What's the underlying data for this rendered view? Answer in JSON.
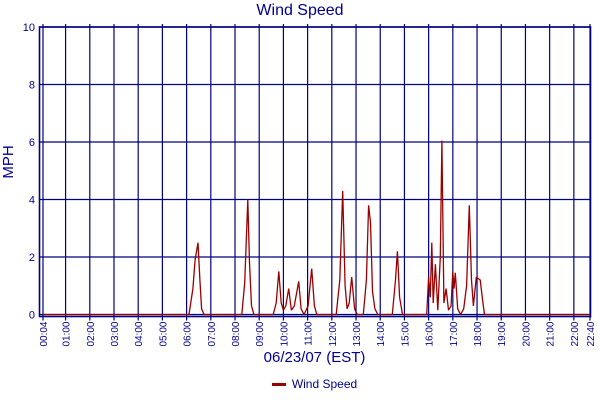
{
  "chart_data": {
    "type": "line",
    "title": "Wind Speed",
    "xlabel": "06/23/07 (EST)",
    "ylabel": "MPH",
    "ylim": [
      0,
      10
    ],
    "xlim": [
      0.067,
      22.667
    ],
    "grid": true,
    "y_ticks": [
      0,
      2,
      4,
      6,
      8,
      10
    ],
    "x_ticks": [
      {
        "t": 0.067,
        "label": "00:04"
      },
      {
        "t": 1,
        "label": "01:00"
      },
      {
        "t": 2,
        "label": "02:00"
      },
      {
        "t": 3,
        "label": "03:00"
      },
      {
        "t": 4,
        "label": "04:00"
      },
      {
        "t": 5,
        "label": "05:00"
      },
      {
        "t": 6,
        "label": "06:00"
      },
      {
        "t": 7,
        "label": "07:00"
      },
      {
        "t": 8,
        "label": "08:00"
      },
      {
        "t": 9,
        "label": "09:00"
      },
      {
        "t": 10,
        "label": "10:00"
      },
      {
        "t": 11,
        "label": "11:00"
      },
      {
        "t": 12,
        "label": "12:00"
      },
      {
        "t": 13,
        "label": "13:00"
      },
      {
        "t": 14,
        "label": "14:00"
      },
      {
        "t": 15,
        "label": "15:00"
      },
      {
        "t": 16,
        "label": "16:00"
      },
      {
        "t": 17,
        "label": "17:00"
      },
      {
        "t": 18,
        "label": "18:00"
      },
      {
        "t": 19,
        "label": "19:00"
      },
      {
        "t": 20,
        "label": "20:00"
      },
      {
        "t": 21,
        "label": "21:00"
      },
      {
        "t": 22,
        "label": "22:00"
      },
      {
        "t": 22.667,
        "label": "22:40"
      }
    ],
    "legend": {
      "position": "bottom",
      "entries": [
        {
          "label": "Wind Speed",
          "color": "#990000"
        }
      ]
    },
    "colors": {
      "axis": "#000080",
      "grid": "#000080",
      "text": "#00008B",
      "line": "#990000",
      "background": "#ffffff"
    },
    "series": [
      {
        "name": "Wind Speed",
        "color": "#990000",
        "points": [
          [
            0.07,
            0
          ],
          [
            6.1,
            0
          ],
          [
            6.26,
            0.9
          ],
          [
            6.35,
            1.9
          ],
          [
            6.47,
            2.5
          ],
          [
            6.55,
            1.2
          ],
          [
            6.62,
            0.2
          ],
          [
            6.72,
            0
          ],
          [
            8.28,
            0
          ],
          [
            8.4,
            1.1
          ],
          [
            8.53,
            4.0
          ],
          [
            8.6,
            1.8
          ],
          [
            8.68,
            0.3
          ],
          [
            8.78,
            0
          ],
          [
            9.58,
            0
          ],
          [
            9.7,
            0.4
          ],
          [
            9.81,
            1.5
          ],
          [
            9.91,
            0.4
          ],
          [
            10.0,
            0.15
          ],
          [
            10.1,
            0.3
          ],
          [
            10.22,
            0.9
          ],
          [
            10.33,
            0.15
          ],
          [
            10.45,
            0.3
          ],
          [
            10.63,
            1.15
          ],
          [
            10.73,
            0.2
          ],
          [
            10.85,
            0
          ],
          [
            11.02,
            0.3
          ],
          [
            11.17,
            1.6
          ],
          [
            11.28,
            0.3
          ],
          [
            11.38,
            0
          ],
          [
            12.18,
            0
          ],
          [
            12.33,
            1.2
          ],
          [
            12.45,
            4.3
          ],
          [
            12.55,
            1.0
          ],
          [
            12.63,
            0.2
          ],
          [
            12.72,
            0.4
          ],
          [
            12.82,
            1.3
          ],
          [
            12.94,
            0.2
          ],
          [
            13.05,
            0
          ],
          [
            13.3,
            0
          ],
          [
            13.43,
            1.2
          ],
          [
            13.52,
            3.8
          ],
          [
            13.6,
            3.2
          ],
          [
            13.68,
            0.8
          ],
          [
            13.78,
            0.2
          ],
          [
            13.9,
            0
          ],
          [
            14.5,
            0
          ],
          [
            14.63,
            1.2
          ],
          [
            14.71,
            2.2
          ],
          [
            14.8,
            0.6
          ],
          [
            14.92,
            0
          ],
          [
            15.92,
            0
          ],
          [
            16.0,
            1.3
          ],
          [
            16.07,
            0.6
          ],
          [
            16.13,
            2.5
          ],
          [
            16.19,
            0.4
          ],
          [
            16.28,
            1.75
          ],
          [
            16.38,
            0.15
          ],
          [
            16.48,
            2.0
          ],
          [
            16.55,
            6.05
          ],
          [
            16.63,
            0.4
          ],
          [
            16.72,
            0.9
          ],
          [
            16.82,
            0.15
          ],
          [
            16.93,
            0.3
          ],
          [
            17.0,
            1.5
          ],
          [
            17.05,
            0.9
          ],
          [
            17.1,
            1.45
          ],
          [
            17.2,
            0.2
          ],
          [
            17.32,
            0
          ],
          [
            17.45,
            0.2
          ],
          [
            17.57,
            1.0
          ],
          [
            17.68,
            3.8
          ],
          [
            17.77,
            1.2
          ],
          [
            17.85,
            0.3
          ],
          [
            17.97,
            1.3
          ],
          [
            18.13,
            1.2
          ],
          [
            18.23,
            0.5
          ],
          [
            18.31,
            0
          ],
          [
            22.67,
            0
          ]
        ]
      }
    ]
  }
}
